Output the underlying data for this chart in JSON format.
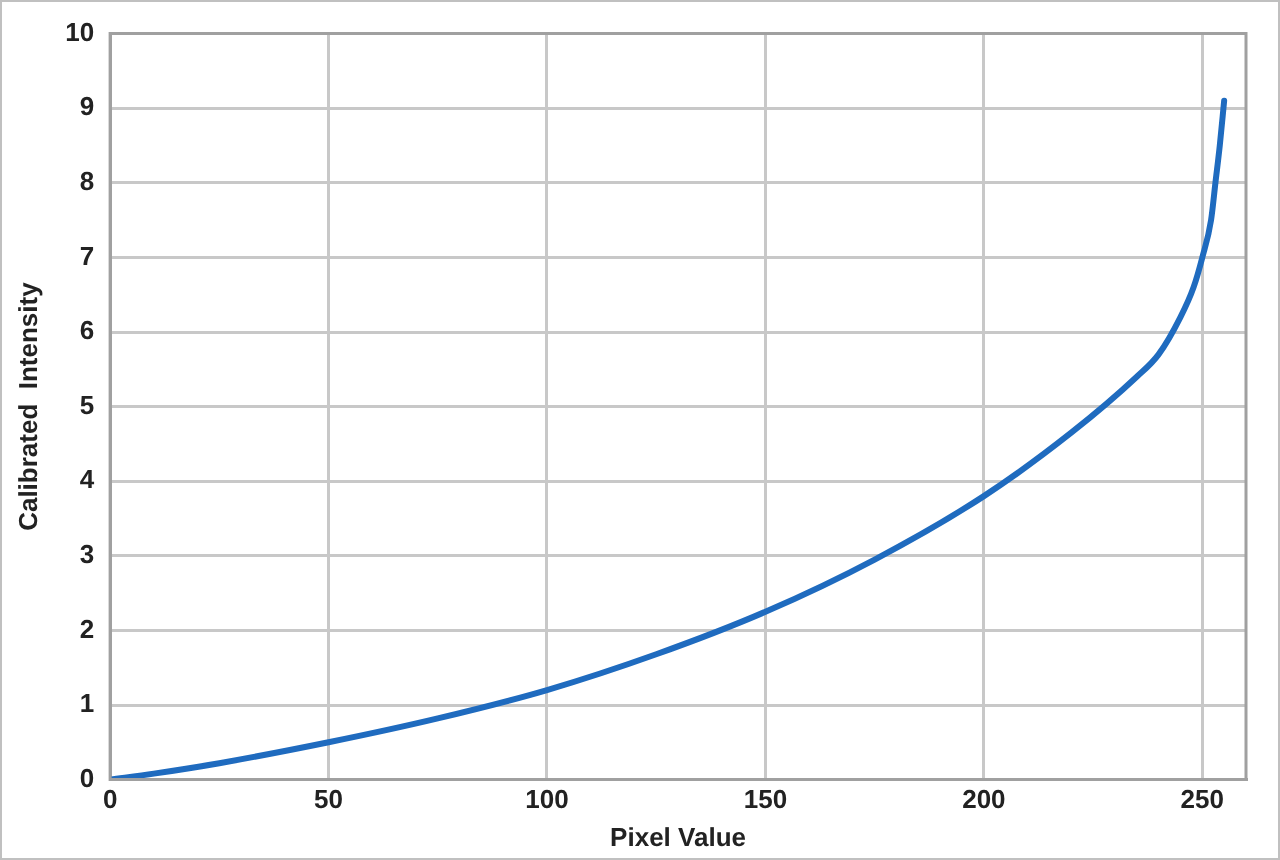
{
  "chart_data": {
    "type": "line",
    "xlabel": "Pixel Value",
    "ylabel": "Calibrated  Intensity",
    "x": [
      0,
      10,
      25,
      50,
      75,
      100,
      125,
      150,
      175,
      200,
      220,
      235,
      240,
      245,
      248,
      250,
      252,
      253,
      254,
      255
    ],
    "series": [
      {
        "color": "#1f6bbf",
        "values": [
          0,
          0.08,
          0.22,
          0.5,
          0.82,
          1.2,
          1.68,
          2.25,
          2.95,
          3.8,
          4.65,
          5.4,
          5.7,
          6.2,
          6.6,
          7.0,
          7.5,
          8.0,
          8.5,
          9.1
        ]
      }
    ],
    "xlim": [
      0,
      260
    ],
    "xticks": [
      0,
      50,
      100,
      150,
      200,
      250
    ],
    "ylim": [
      0,
      10
    ],
    "yticks": [
      0,
      1,
      2,
      3,
      4,
      5,
      6,
      7,
      8,
      9,
      10
    ],
    "grid": true,
    "legend": false,
    "marker": "none",
    "line_style": "solid"
  }
}
